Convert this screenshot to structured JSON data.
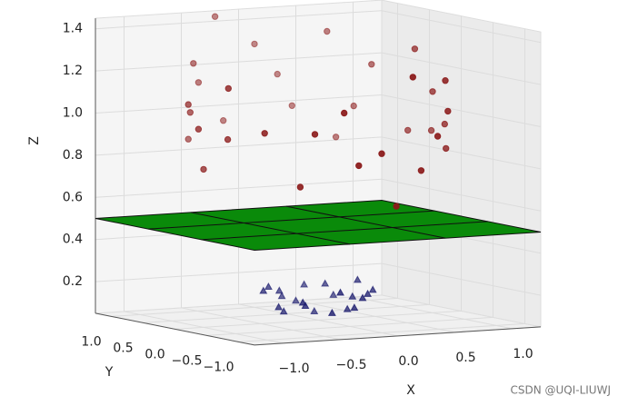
{
  "chart_data": {
    "type": "scatter3d",
    "xlabel": "X",
    "ylabel": "Y",
    "zlabel": "Z",
    "xlim": [
      -1.25,
      1.25
    ],
    "ylim": [
      -1.25,
      1.25
    ],
    "zlim": [
      0.05,
      1.45
    ],
    "xticks": [
      {
        "value": -1,
        "label": "−1.0"
      },
      {
        "value": -0.5,
        "label": "−0.5"
      },
      {
        "value": 0,
        "label": "0.0"
      },
      0.5,
      {
        "value": 1,
        "label": "1.0"
      }
    ],
    "yticks": [
      {
        "value": -1,
        "label": "−1.0"
      },
      {
        "value": -0.5,
        "label": "−0.5"
      },
      {
        "value": 0,
        "label": "0.0"
      },
      0.5,
      {
        "value": 1,
        "label": "1.0"
      }
    ],
    "zticks": [
      0.2,
      0.4,
      0.6,
      0.8,
      {
        "value": 1,
        "label": "1.0"
      },
      1.2,
      1.4
    ],
    "grid": true,
    "plane": {
      "z": 0.5,
      "color": "#0a8a0a"
    },
    "series": [
      {
        "color": "#8b1a1a",
        "marker": "circle",
        "x": [
          1.0,
          0.95,
          0.8,
          0.6,
          0.3,
          0.0,
          -0.3,
          -0.6,
          -0.8,
          -0.95,
          -1.0,
          -0.95,
          -0.8,
          -0.6,
          -0.3,
          0.0,
          0.3,
          0.6,
          0.8,
          0.95,
          0.9,
          0.7,
          -0.7,
          -0.9,
          -0.5,
          0.4,
          1.05,
          0.2,
          -1.05,
          0.75,
          -0.2,
          0.55,
          -0.4,
          1.1,
          -1.1,
          0.1
        ],
        "y": [
          0.0,
          0.3,
          0.6,
          0.8,
          0.95,
          1.0,
          0.95,
          0.8,
          0.6,
          0.3,
          0.0,
          -0.3,
          -0.6,
          -0.8,
          -0.95,
          -1.0,
          -0.95,
          -0.8,
          -0.6,
          -0.3,
          0.1,
          0.7,
          0.7,
          -0.2,
          -0.85,
          -0.9,
          -0.1,
          1.0,
          0.15,
          -0.65,
          -1.0,
          0.85,
          0.9,
          0.2,
          -0.1,
          -1.05
        ],
        "z": [
          1.1,
          0.9,
          1.2,
          0.85,
          1.0,
          1.3,
          0.95,
          1.15,
          0.9,
          1.05,
          0.8,
          1.2,
          1.0,
          0.75,
          1.1,
          0.9,
          1.25,
          0.95,
          1.05,
          0.85,
          1.3,
          1.0,
          1.25,
          0.95,
          1.0,
          0.8,
          0.95,
          1.15,
          1.1,
          1.2,
          0.85,
          1.35,
          1.45,
          0.9,
          1.0,
          0.65
        ]
      },
      {
        "color": "#1c1c6e",
        "marker": "triangle",
        "x": [
          0.3,
          0.2,
          0.0,
          -0.2,
          -0.3,
          -0.25,
          0.0,
          0.25,
          0.4,
          -0.4,
          0.1,
          -0.1,
          0.35,
          -0.35,
          0.15,
          -0.15,
          0.45,
          -0.45,
          0.05,
          0.3,
          -0.3,
          0.2
        ],
        "y": [
          0.0,
          0.25,
          0.35,
          0.25,
          0.0,
          -0.25,
          -0.35,
          -0.25,
          0.1,
          -0.1,
          0.4,
          -0.4,
          -0.15,
          0.15,
          -0.3,
          0.3,
          -0.05,
          0.05,
          0.15,
          0.3,
          -0.3,
          -0.1
        ],
        "z": [
          0.15,
          0.2,
          0.12,
          0.18,
          0.1,
          0.14,
          0.2,
          0.16,
          0.22,
          0.13,
          0.19,
          0.11,
          0.17,
          0.21,
          0.12,
          0.15,
          0.18,
          0.2,
          0.08,
          0.14,
          0.16,
          0.1
        ]
      }
    ],
    "watermark": "CSDN @UQI-LIUWJ"
  }
}
